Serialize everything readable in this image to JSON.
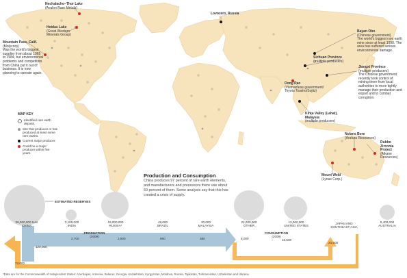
{
  "labels": {
    "nechalacho": {
      "name": "Nechalacho–Thor Lake",
      "sub": "(Avalon Rare Metals)"
    },
    "hoidas": {
      "name": "Hoidas Lake",
      "sub": "(Great Western Minerals Group)"
    },
    "mountain_pass": {
      "name": "Mountain Pass, Calif.",
      "sub": "(Molycorp)",
      "desc": "Was the world's biggest supplier from about 1965 to 1984, but environmental problems and competition from China put it out of business. It is now planning to operate again."
    },
    "lovozero": {
      "name": "Lovozero, Russia"
    },
    "bayan_obo": {
      "name": "Bayan Obo",
      "sub": "(Chinese government)",
      "desc": "The world's biggest rare earth mine since at least 1990. The area has suffered serious environmental damage."
    },
    "sichuan": {
      "name": "Sichuan Province",
      "sub": "(multiple producers)"
    },
    "jiangxi": {
      "name": "Jiangxi Province",
      "sub": "(multiple producers)",
      "desc": "The Chinese government recently took control of mining there from local authorities to more tightly manage their production and export and to combat corruption."
    },
    "dong_pao": {
      "name": "Dong Pao",
      "sub": "(Vietnamese government/ Toyota Tsusho/Sojitz)"
    },
    "kinta": {
      "name": "Kinta Valley (Lahat), Malaysia",
      "sub": "(multiple producers)"
    },
    "nolans": {
      "name": "Nolans Bore",
      "sub": "(Arafura Resources)"
    },
    "dubbo": {
      "name": "Dubbo Zirconia Project",
      "sub": "(Alkane Resources)"
    },
    "mount_weld": {
      "name": "Mount Weld",
      "sub": "(Lynas Corp.)"
    }
  },
  "map_key": {
    "title": "MAP KEY",
    "items": [
      {
        "text": "Identified rare earth deposit.",
        "style": "open"
      },
      {
        "text": "Site that produces or has produced at least some rare earths.",
        "style": "gray"
      },
      {
        "text": "Current major producer.",
        "style": "black"
      },
      {
        "text": "Could be a major producer within five years.",
        "style": "red"
      }
    ]
  },
  "production": {
    "title": "Production and Consumption",
    "text": "China produces 97 percent of rare earth elements, and manufacturers and processors there use about 60 percent of them. Some analysts say that this has created a crisis of supply."
  },
  "reserves_label": "ESTIMATED RESERVES",
  "reserves": [
    {
      "country": "CHINA",
      "tons": "36,000,000 tons",
      "r": 28
    },
    {
      "country": "INDIA",
      "tons": "3,100,000",
      "r": 8
    },
    {
      "country": "RUSSIA*",
      "tons": "19,000,000",
      "r": 20
    },
    {
      "country": "BRAZIL",
      "tons": "48,000",
      "r": 0
    },
    {
      "country": "MALAYSIA",
      "tons": "30,000",
      "r": 0
    },
    {
      "country": "OTHER",
      "tons": "22,000,000",
      "r": 22
    },
    {
      "country": "UNITED STATES",
      "tons": "13,000,000",
      "r": 17
    },
    {
      "country": "JAPAN AND SOUTHEAST ASIA",
      "tons": "",
      "r": 0
    },
    {
      "country": "AUSTRALIA",
      "tons": "5,400,000",
      "r": 11
    }
  ],
  "flow": {
    "production_label": "PRODUCTION",
    "production_year": "(2009)",
    "consumption_label": "CONSUMPTION",
    "consumption_year": "(2009)",
    "values": {
      "china_prod": "120,000",
      "india": "2,700",
      "russia": "2,500",
      "brazil": "650",
      "malaysia": "380",
      "china_cons": "74,000",
      "other": "8,000",
      "us": "16,500",
      "japan": "23,500"
    }
  },
  "footnote": "*Data are for the Commonwealth of Independent States: Azerbaijan, Armenia, Belarus, Georgia, Kazakhstan, Kyrgyzstan, Moldova, Russia, Tajikistan, Turkmenistan, Uzbekistan and Ukraine.",
  "colors": {
    "land": "#f7e4bd",
    "ocean": "#ffffff",
    "production": "#a9c6d8",
    "consumption": "#f7b552",
    "reserve": "#dcdcdc",
    "red": "#d7281e"
  }
}
